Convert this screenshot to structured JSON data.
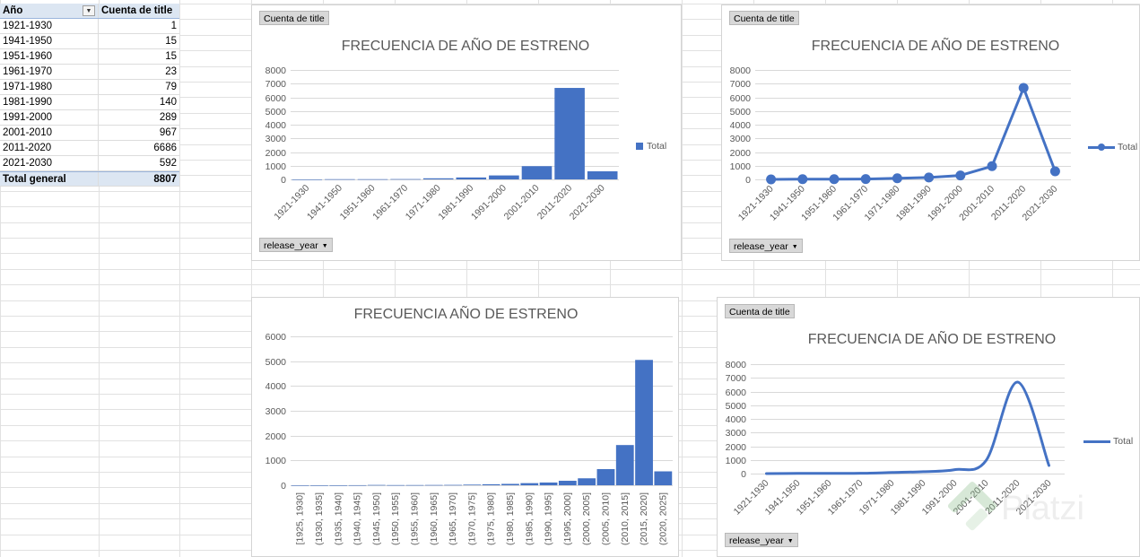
{
  "colors": {
    "accent": "#4472c4",
    "gridline": "#d9d9d9",
    "axis_text": "#595959",
    "pivot_header": "#dce6f2"
  },
  "pivot": {
    "col1_header": "Año",
    "col2_header": "Cuenta de title",
    "filter_icon": "filter-dropdown-icon",
    "rows": [
      {
        "label": "1921-1930",
        "value": "1"
      },
      {
        "label": "1941-1950",
        "value": "15"
      },
      {
        "label": "1951-1960",
        "value": "15"
      },
      {
        "label": "1961-1970",
        "value": "23"
      },
      {
        "label": "1971-1980",
        "value": "79"
      },
      {
        "label": "1981-1990",
        "value": "140"
      },
      {
        "label": "1991-2000",
        "value": "289"
      },
      {
        "label": "2001-2010",
        "value": "967"
      },
      {
        "label": "2011-2020",
        "value": "6686"
      },
      {
        "label": "2021-2030",
        "value": "592"
      }
    ],
    "total_label": "Total general",
    "total_value": "8807"
  },
  "watermark": {
    "text": "Platzi",
    "icon": "platzi-logo-icon"
  },
  "chart_data": [
    {
      "id": "c1",
      "type": "bar",
      "title": "FRECUENCIA DE AÑO DE ESTRENO",
      "value_field": "Cuenta de title",
      "axis_field": "release_year",
      "legend": "Total",
      "legend_position": "right",
      "grid": true,
      "ylim": [
        0,
        8000
      ],
      "yticks": [
        "0",
        "1000",
        "2000",
        "3000",
        "4000",
        "5000",
        "6000",
        "7000",
        "8000"
      ],
      "categories": [
        "1921-1930",
        "1941-1950",
        "1951-1960",
        "1961-1970",
        "1971-1980",
        "1981-1990",
        "1991-2000",
        "2001-2010",
        "2011-2020",
        "2021-2030"
      ],
      "values": [
        1,
        15,
        15,
        23,
        79,
        140,
        289,
        967,
        6686,
        592
      ]
    },
    {
      "id": "c2",
      "type": "line",
      "markers": true,
      "smooth": false,
      "title": "FRECUENCIA DE AÑO DE ESTRENO",
      "value_field": "Cuenta de title",
      "axis_field": "release_year",
      "legend": "Total",
      "legend_position": "right",
      "grid": true,
      "ylim": [
        0,
        8000
      ],
      "yticks": [
        "0",
        "1000",
        "2000",
        "3000",
        "4000",
        "5000",
        "6000",
        "7000",
        "8000"
      ],
      "categories": [
        "1921-1930",
        "1941-1950",
        "1951-1960",
        "1961-1970",
        "1971-1980",
        "1981-1990",
        "1991-2000",
        "2001-2010",
        "2011-2020",
        "2021-2030"
      ],
      "values": [
        1,
        15,
        15,
        23,
        79,
        140,
        289,
        967,
        6686,
        592
      ]
    },
    {
      "id": "c3",
      "type": "bar",
      "title": "FRECUENCIA AÑO DE ESTRENO",
      "grid": true,
      "ylim": [
        0,
        6000
      ],
      "yticks": [
        "0",
        "1000",
        "2000",
        "3000",
        "4000",
        "5000",
        "6000"
      ],
      "categories": [
        "[1925, 1930]",
        "(1930, 1935]",
        "(1935, 1940]",
        "(1940, 1945]",
        "(1945, 1950]",
        "(1950, 1955]",
        "(1955, 1960]",
        "(1960, 1965]",
        "(1965, 1970]",
        "(1970, 1975]",
        "(1975, 1980]",
        "(1980, 1985]",
        "(1985, 1990]",
        "(1990, 1995]",
        "(1995, 2000]",
        "(2000, 2005]",
        "(2005, 2010]",
        "(2010, 2015]",
        "(2015, 2020]",
        "(2020, 2025]"
      ],
      "values": [
        1,
        0,
        0,
        3,
        12,
        7,
        8,
        11,
        14,
        25,
        40,
        55,
        85,
        110,
        180,
        280,
        650,
        1620,
        5050,
        560
      ]
    },
    {
      "id": "c4",
      "type": "line",
      "markers": false,
      "smooth": true,
      "title": "FRECUENCIA DE AÑO DE ESTRENO",
      "value_field": "Cuenta de title",
      "axis_field": "release_year",
      "legend": "Total",
      "legend_position": "right",
      "grid": true,
      "ylim": [
        0,
        8000
      ],
      "yticks": [
        "0",
        "1000",
        "2000",
        "3000",
        "4000",
        "5000",
        "6000",
        "7000",
        "8000"
      ],
      "categories": [
        "1921-1930",
        "1941-1950",
        "1951-1960",
        "1961-1970",
        "1971-1980",
        "1981-1990",
        "1991-2000",
        "2001-2010",
        "2011-2020",
        "2021-2030"
      ],
      "values": [
        1,
        15,
        15,
        23,
        79,
        140,
        289,
        967,
        6686,
        592
      ]
    }
  ]
}
